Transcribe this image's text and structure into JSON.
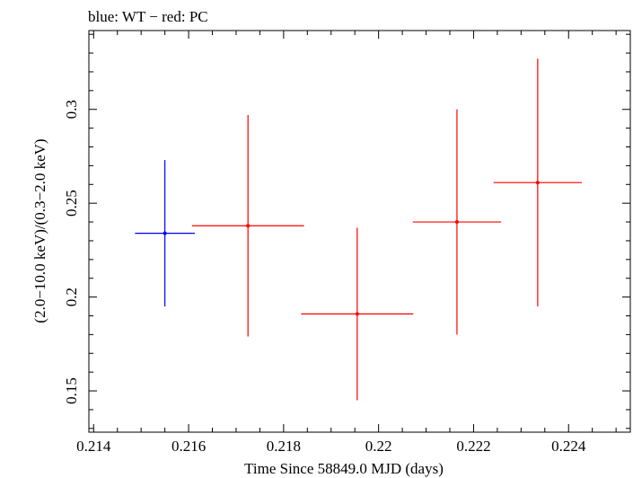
{
  "chart_data": {
    "type": "scatter",
    "title": "blue: WT − red: PC",
    "xlabel": "Time Since 58849.0 MJD (days)",
    "ylabel": "(2.0−10.0 keV)/(0.3−2.0 keV)",
    "xlim": [
      0.2139,
      0.2253
    ],
    "ylim": [
      0.128,
      0.342
    ],
    "xticks": [
      0.214,
      0.216,
      0.218,
      0.22,
      0.222,
      0.224
    ],
    "xtick_labels": [
      "0.214",
      "0.216",
      "0.218",
      "0.22",
      "0.222",
      "0.224"
    ],
    "yticks": [
      0.15,
      0.2,
      0.25,
      0.3
    ],
    "ytick_labels": [
      "0.15",
      "0.2",
      "0.25",
      "0.3"
    ],
    "grid": false,
    "series": [
      {
        "name": "WT",
        "color": "#0000ff",
        "points": [
          {
            "x": 0.2155,
            "y": 0.234,
            "xerr": 0.00063,
            "yerr_low": 0.039,
            "yerr_high": 0.039
          }
        ]
      },
      {
        "name": "PC",
        "color": "#ff0000",
        "points": [
          {
            "x": 0.21725,
            "y": 0.238,
            "xerr": 0.00118,
            "yerr_low": 0.059,
            "yerr_high": 0.059
          },
          {
            "x": 0.21955,
            "y": 0.191,
            "xerr": 0.00118,
            "yerr_low": 0.046,
            "yerr_high": 0.046
          },
          {
            "x": 0.22165,
            "y": 0.24,
            "xerr": 0.00093,
            "yerr_low": 0.06,
            "yerr_high": 0.06
          },
          {
            "x": 0.22335,
            "y": 0.261,
            "xerr": 0.00093,
            "yerr_low": 0.066,
            "yerr_high": 0.066
          }
        ]
      }
    ]
  }
}
